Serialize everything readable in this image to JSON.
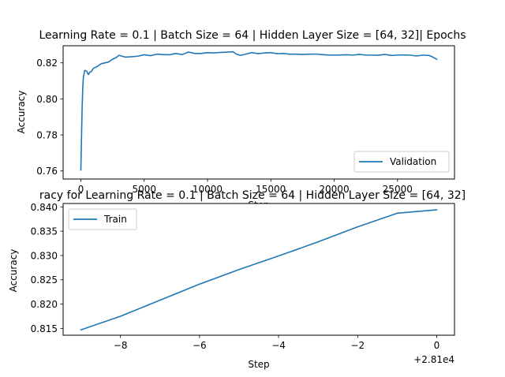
{
  "figure": {
    "background": "#ffffff",
    "line_color": "#1f77b4"
  },
  "chart_data": [
    {
      "type": "line",
      "title": "Learning Rate = 0.1 | Batch Size = 64 | Hidden Layer Size = [64, 32]| Epochs",
      "xlabel": "Step",
      "ylabel": "Accuracy",
      "xlim": [
        -1400,
        29500
      ],
      "ylim": [
        0.7555,
        0.8295
      ],
      "xticks": [
        0,
        5000,
        10000,
        15000,
        20000,
        25000
      ],
      "xtick_labels": [
        "0",
        "5000",
        "10000",
        "15000",
        "20000",
        "25000"
      ],
      "yticks": [
        0.76,
        0.78,
        0.8,
        0.82
      ],
      "ytick_labels": [
        "0.76",
        "0.78",
        "0.80",
        "0.82"
      ],
      "legend_position": "lower right",
      "grid": false,
      "series": [
        {
          "name": "Validation",
          "color": "#1f77b4",
          "x": [
            0,
            50,
            100,
            150,
            200,
            300,
            450,
            600,
            700,
            800,
            1000,
            1300,
            1600,
            1900,
            2200,
            2500,
            2800,
            3000,
            3200,
            3500,
            4000,
            4500,
            5000,
            5500,
            6000,
            6500,
            7000,
            7500,
            8000,
            8500,
            9000,
            9500,
            10000,
            10500,
            11000,
            11500,
            12000,
            12300,
            12600,
            13000,
            13500,
            14000,
            14500,
            15000,
            15500,
            16000,
            16500,
            17000,
            17500,
            18000,
            18500,
            19000,
            19500,
            20000,
            20500,
            21000,
            21500,
            22000,
            22500,
            23000,
            23500,
            24000,
            24500,
            25000,
            25500,
            26000,
            26500,
            27000,
            27500,
            27800,
            28100
          ],
          "y": [
            0.7605,
            0.778,
            0.795,
            0.806,
            0.812,
            0.8158,
            0.8155,
            0.8135,
            0.8148,
            0.815,
            0.817,
            0.818,
            0.8195,
            0.82,
            0.8205,
            0.822,
            0.823,
            0.8242,
            0.8238,
            0.8232,
            0.8234,
            0.8237,
            0.8245,
            0.824,
            0.8248,
            0.8246,
            0.8245,
            0.8252,
            0.8246,
            0.826,
            0.8252,
            0.8252,
            0.8257,
            0.8255,
            0.8258,
            0.8259,
            0.8262,
            0.8248,
            0.8242,
            0.8248,
            0.8257,
            0.8251,
            0.8255,
            0.8257,
            0.8251,
            0.8252,
            0.8248,
            0.8248,
            0.8247,
            0.8248,
            0.8249,
            0.8246,
            0.8244,
            0.8243,
            0.8244,
            0.8245,
            0.8243,
            0.8247,
            0.8243,
            0.8243,
            0.8242,
            0.8247,
            0.8241,
            0.8243,
            0.8244,
            0.8243,
            0.8238,
            0.8243,
            0.8241,
            0.8232,
            0.822
          ]
        }
      ]
    },
    {
      "type": "line",
      "title": "racy for Learning Rate = 0.1 | Batch Size = 64 | Hidden Layer Size = [64, 32]",
      "xlabel": "Step",
      "ylabel": "Accuracy",
      "offset_text": "+2.81e4",
      "xlim": [
        -9.45,
        0.45
      ],
      "ylim": [
        0.8136,
        0.8407
      ],
      "xticks": [
        -8,
        -6,
        -4,
        -2,
        0
      ],
      "xtick_labels": [
        "−8",
        "−6",
        "−4",
        "−2",
        "0"
      ],
      "yticks": [
        0.815,
        0.82,
        0.825,
        0.83,
        0.835,
        0.84
      ],
      "ytick_labels": [
        "0.815",
        "0.820",
        "0.825",
        "0.830",
        "0.835",
        "0.840"
      ],
      "legend_position": "upper left",
      "grid": false,
      "series": [
        {
          "name": "Train",
          "color": "#1f77b4",
          "x": [
            -9,
            -8,
            -7,
            -6,
            -5,
            -4,
            -3,
            -2,
            -1,
            0
          ],
          "y": [
            0.8147,
            0.8175,
            0.8208,
            0.8241,
            0.8271,
            0.8299,
            0.8328,
            0.8359,
            0.8387,
            0.8394
          ]
        }
      ]
    }
  ]
}
